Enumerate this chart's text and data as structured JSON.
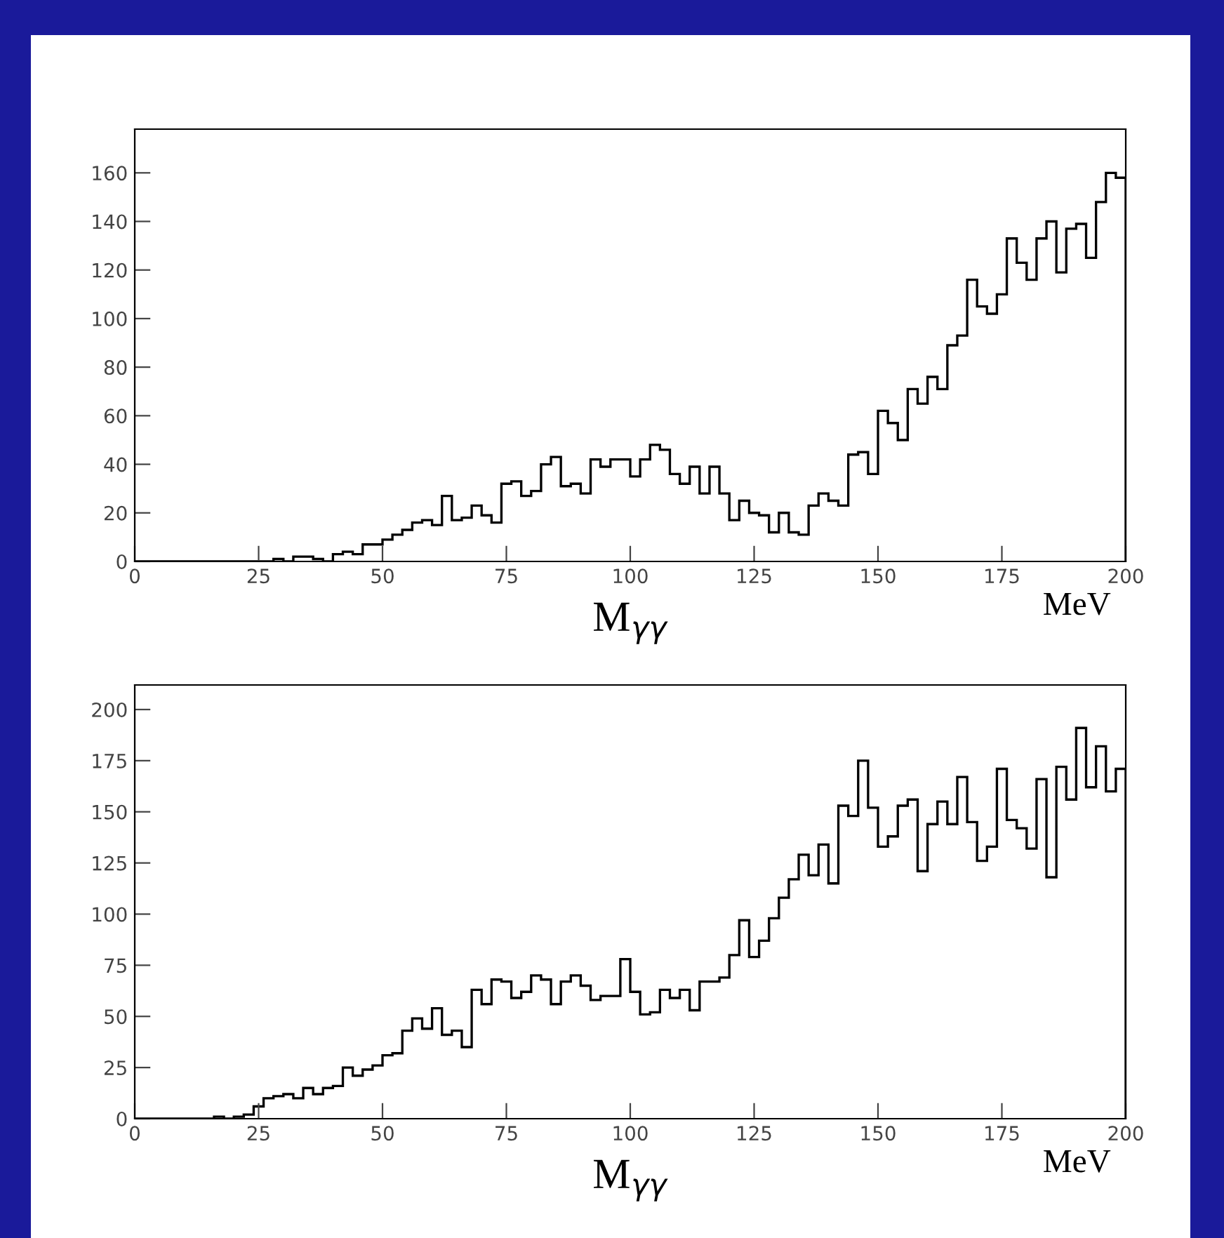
{
  "chart_data": [
    {
      "type": "histogram",
      "xlabel": "M$_{γγ}$",
      "annotations": [
        "MeV"
      ],
      "color": "#000000",
      "grid": false,
      "legend": false,
      "bins": [
        0,
        2,
        4,
        6,
        8,
        10,
        12,
        14,
        16,
        18,
        20,
        22,
        24,
        26,
        28,
        30,
        32,
        34,
        36,
        38,
        40,
        42,
        44,
        46,
        48,
        50,
        52,
        54,
        56,
        58,
        60,
        62,
        64,
        66,
        68,
        70,
        72,
        74,
        76,
        78,
        80,
        82,
        84,
        86,
        88,
        90,
        92,
        94,
        96,
        98,
        100,
        102,
        104,
        106,
        108,
        110,
        112,
        114,
        116,
        118,
        120,
        122,
        124,
        126,
        128,
        130,
        132,
        134,
        136,
        138,
        140,
        142,
        144,
        146,
        148,
        150,
        152,
        154,
        156,
        158,
        160,
        162,
        164,
        166,
        168,
        170,
        172,
        174,
        176,
        178,
        180,
        182,
        184,
        186,
        188,
        190,
        192,
        194,
        196,
        198,
        200
      ],
      "values": [
        0,
        0,
        0,
        0,
        0,
        0,
        0,
        0,
        0,
        0,
        0,
        0,
        0,
        0,
        1,
        0,
        2,
        2,
        1,
        0,
        3,
        4,
        3,
        7,
        7,
        9,
        11,
        13,
        16,
        17,
        15,
        27,
        17,
        18,
        23,
        19,
        16,
        32,
        33,
        27,
        29,
        40,
        43,
        31,
        32,
        28,
        42,
        39,
        42,
        42,
        35,
        42,
        48,
        46,
        36,
        32,
        39,
        28,
        39,
        28,
        17,
        25,
        20,
        19,
        12,
        20,
        12,
        11,
        23,
        28,
        25,
        23,
        44,
        45,
        36,
        62,
        57,
        50,
        71,
        65,
        76,
        71,
        89,
        93,
        116,
        105,
        102,
        110,
        133,
        123,
        116,
        133,
        140,
        119,
        137,
        139,
        125,
        148,
        160,
        158
      ],
      "xlim": [
        0,
        200
      ],
      "xticks": [
        0,
        25,
        50,
        75,
        100,
        125,
        150,
        175,
        200
      ],
      "ylim": [
        0,
        178
      ],
      "yticks": [
        0,
        20,
        40,
        60,
        80,
        100,
        120,
        140,
        160
      ]
    },
    {
      "type": "histogram",
      "xlabel": "M$_{γγ}$",
      "annotations": [
        "MeV"
      ],
      "color": "#000000",
      "grid": false,
      "legend": false,
      "bins": [
        0,
        2,
        4,
        6,
        8,
        10,
        12,
        14,
        16,
        18,
        20,
        22,
        24,
        26,
        28,
        30,
        32,
        34,
        36,
        38,
        40,
        42,
        44,
        46,
        48,
        50,
        52,
        54,
        56,
        58,
        60,
        62,
        64,
        66,
        68,
        70,
        72,
        74,
        76,
        78,
        80,
        82,
        84,
        86,
        88,
        90,
        92,
        94,
        96,
        98,
        100,
        102,
        104,
        106,
        108,
        110,
        112,
        114,
        116,
        118,
        120,
        122,
        124,
        126,
        128,
        130,
        132,
        134,
        136,
        138,
        140,
        142,
        144,
        146,
        148,
        150,
        152,
        154,
        156,
        158,
        160,
        162,
        164,
        166,
        168,
        170,
        172,
        174,
        176,
        178,
        180,
        182,
        184,
        186,
        188,
        190,
        192,
        194,
        196,
        198,
        200
      ],
      "values": [
        0,
        0,
        0,
        0,
        0,
        0,
        0,
        0,
        1,
        0,
        1,
        2,
        6,
        10,
        11,
        12,
        10,
        15,
        12,
        15,
        16,
        25,
        21,
        24,
        26,
        31,
        32,
        43,
        49,
        44,
        54,
        41,
        43,
        35,
        63,
        56,
        68,
        67,
        59,
        62,
        70,
        68,
        56,
        67,
        70,
        65,
        58,
        60,
        60,
        78,
        62,
        51,
        52,
        63,
        59,
        63,
        53,
        67,
        67,
        69,
        80,
        97,
        79,
        87,
        98,
        108,
        117,
        129,
        119,
        134,
        115,
        153,
        148,
        175,
        152,
        133,
        138,
        153,
        156,
        121,
        144,
        155,
        144,
        167,
        145,
        126,
        133,
        171,
        146,
        142,
        132,
        166,
        118,
        172,
        156,
        191,
        162,
        182,
        160,
        171
      ],
      "xlim": [
        0,
        200
      ],
      "xticks": [
        0,
        25,
        50,
        75,
        100,
        125,
        150,
        175,
        200
      ],
      "ylim": [
        0,
        212
      ],
      "yticks": [
        0,
        25,
        50,
        75,
        100,
        125,
        150,
        175,
        200
      ]
    }
  ]
}
